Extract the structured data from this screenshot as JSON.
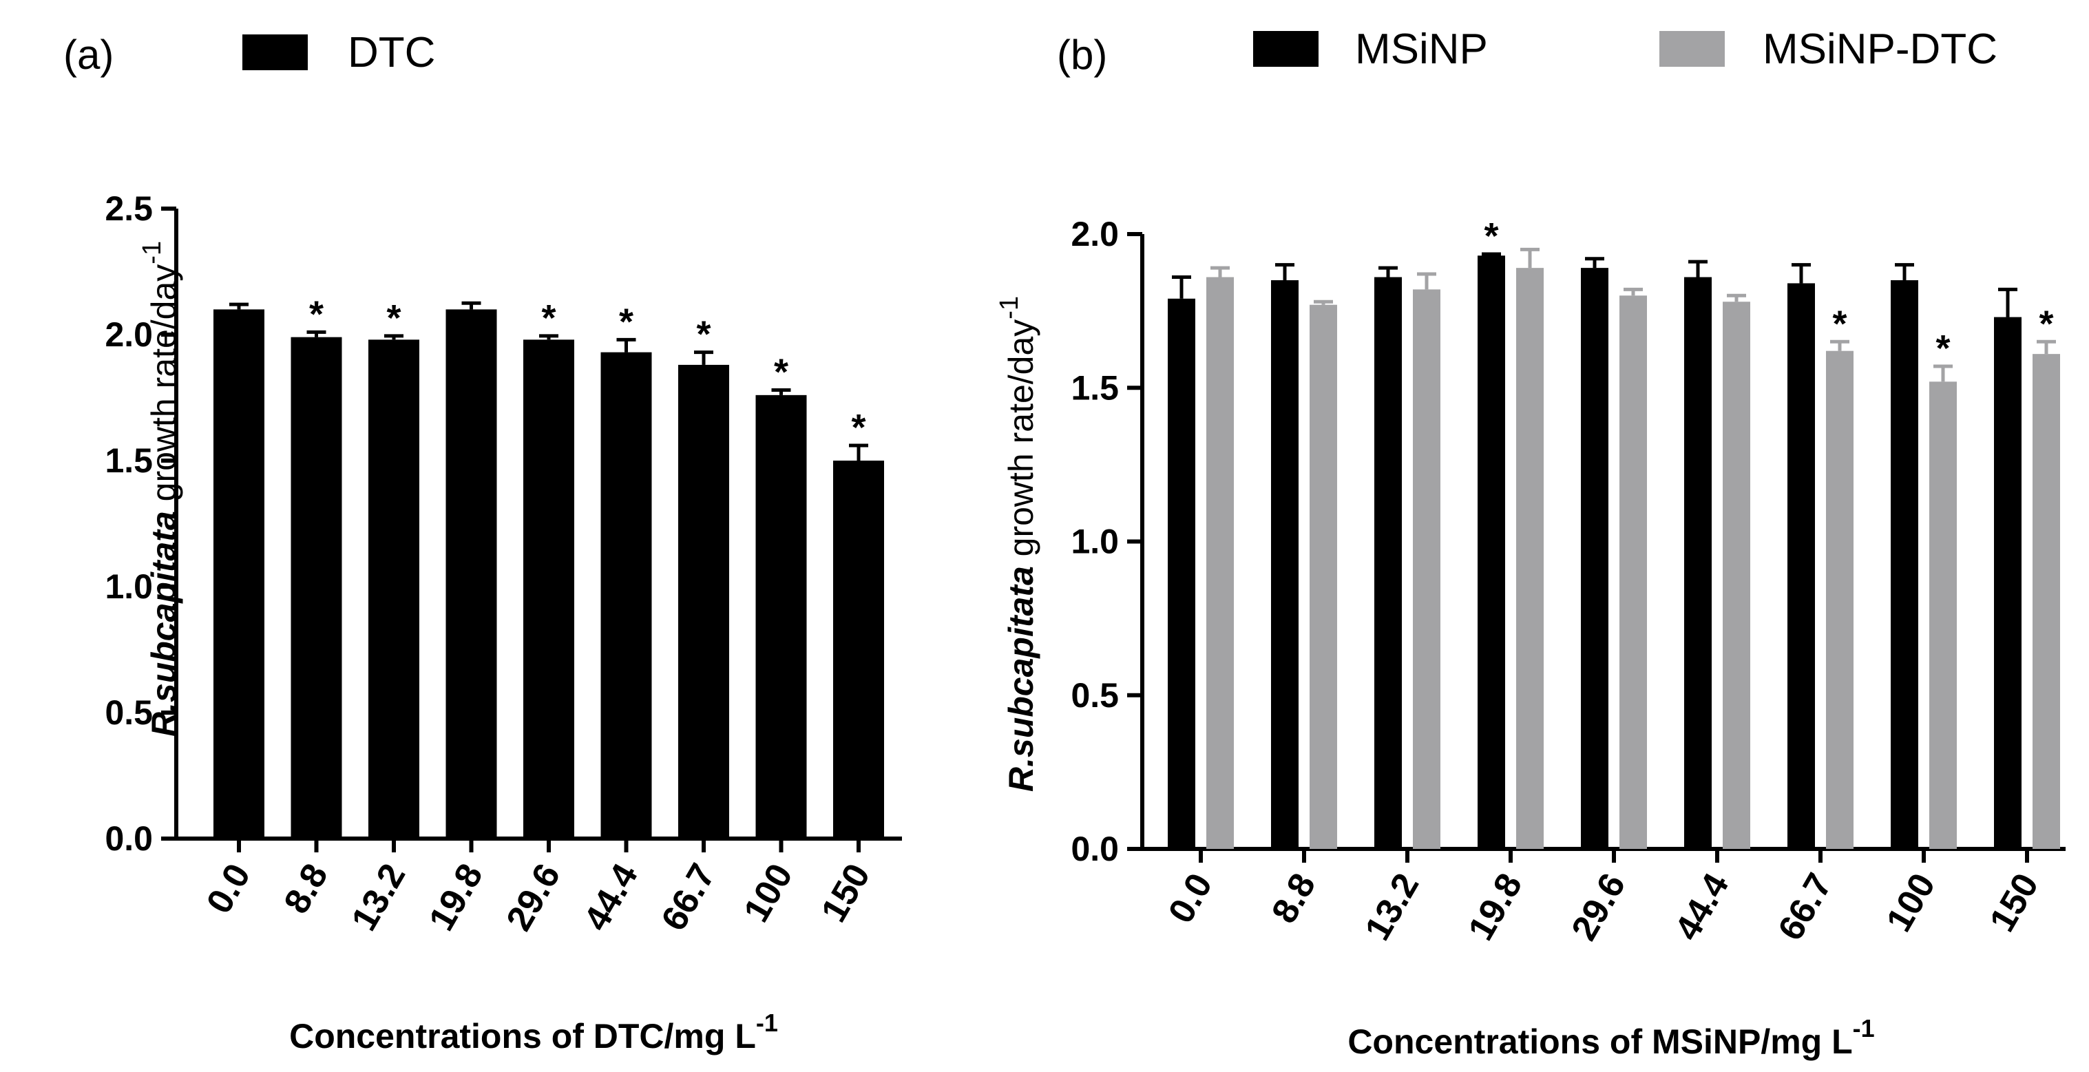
{
  "colors": {
    "dtc": "#000000",
    "msinp": "#000000",
    "msinp_dtc": "#a3a3a5",
    "axis": "#000000"
  },
  "chart_data": [
    {
      "type": "bar",
      "panel": "(a)",
      "categories": [
        "0.0",
        "8.8",
        "13.2",
        "19.8",
        "29.6",
        "44.4",
        "66.7",
        "100",
        "150"
      ],
      "series": [
        {
          "name": "DTC",
          "values": [
            2.1,
            1.99,
            1.98,
            2.1,
            1.98,
            1.93,
            1.88,
            1.76,
            1.5
          ],
          "errors": [
            0.02,
            0.02,
            0.015,
            0.025,
            0.015,
            0.05,
            0.05,
            0.02,
            0.06
          ],
          "significant": [
            false,
            true,
            true,
            false,
            true,
            true,
            true,
            true,
            true
          ]
        }
      ],
      "ylim": [
        0,
        2.5
      ],
      "yticks": [
        "0.0",
        "0.5",
        "1.0",
        "1.5",
        "2.0",
        "2.5"
      ],
      "ylabel_italic": "R.subcapitata",
      "ylabel_rest": " growth rate/day",
      "ylabel_sup": "-1",
      "xlabel": "Concentrations of DTC/mg L",
      "xlabel_sup": "-1",
      "significance_marker": "*",
      "legend_position": "top"
    },
    {
      "type": "bar",
      "panel": "(b)",
      "categories": [
        "0.0",
        "8.8",
        "13.2",
        "19.8",
        "29.6",
        "44.4",
        "66.7",
        "100",
        "150"
      ],
      "series": [
        {
          "name": "MSiNP",
          "values": [
            1.79,
            1.85,
            1.86,
            1.93,
            1.89,
            1.86,
            1.84,
            1.85,
            1.73
          ],
          "errors": [
            0.07,
            0.05,
            0.03,
            0.005,
            0.03,
            0.05,
            0.06,
            0.05,
            0.09
          ],
          "significant": [
            false,
            false,
            false,
            true,
            false,
            false,
            false,
            false,
            false
          ]
        },
        {
          "name": "MSiNP-DTC",
          "values": [
            1.86,
            1.77,
            1.82,
            1.89,
            1.8,
            1.78,
            1.62,
            1.52,
            1.61
          ],
          "errors": [
            0.03,
            0.01,
            0.05,
            0.06,
            0.02,
            0.02,
            0.03,
            0.05,
            0.04
          ],
          "significant": [
            false,
            false,
            false,
            false,
            false,
            false,
            true,
            true,
            true
          ]
        }
      ],
      "ylim": [
        0,
        2.0
      ],
      "yticks": [
        "0.0",
        "0.5",
        "1.0",
        "1.5",
        "2.0"
      ],
      "ylabel_italic": "R.subcapitata",
      "ylabel_rest": " growth rate/day",
      "ylabel_sup": "-1",
      "xlabel": "Concentrations of MSiNP/mg L",
      "xlabel_sup": "-1",
      "significance_marker": "*",
      "legend_position": "top"
    }
  ]
}
